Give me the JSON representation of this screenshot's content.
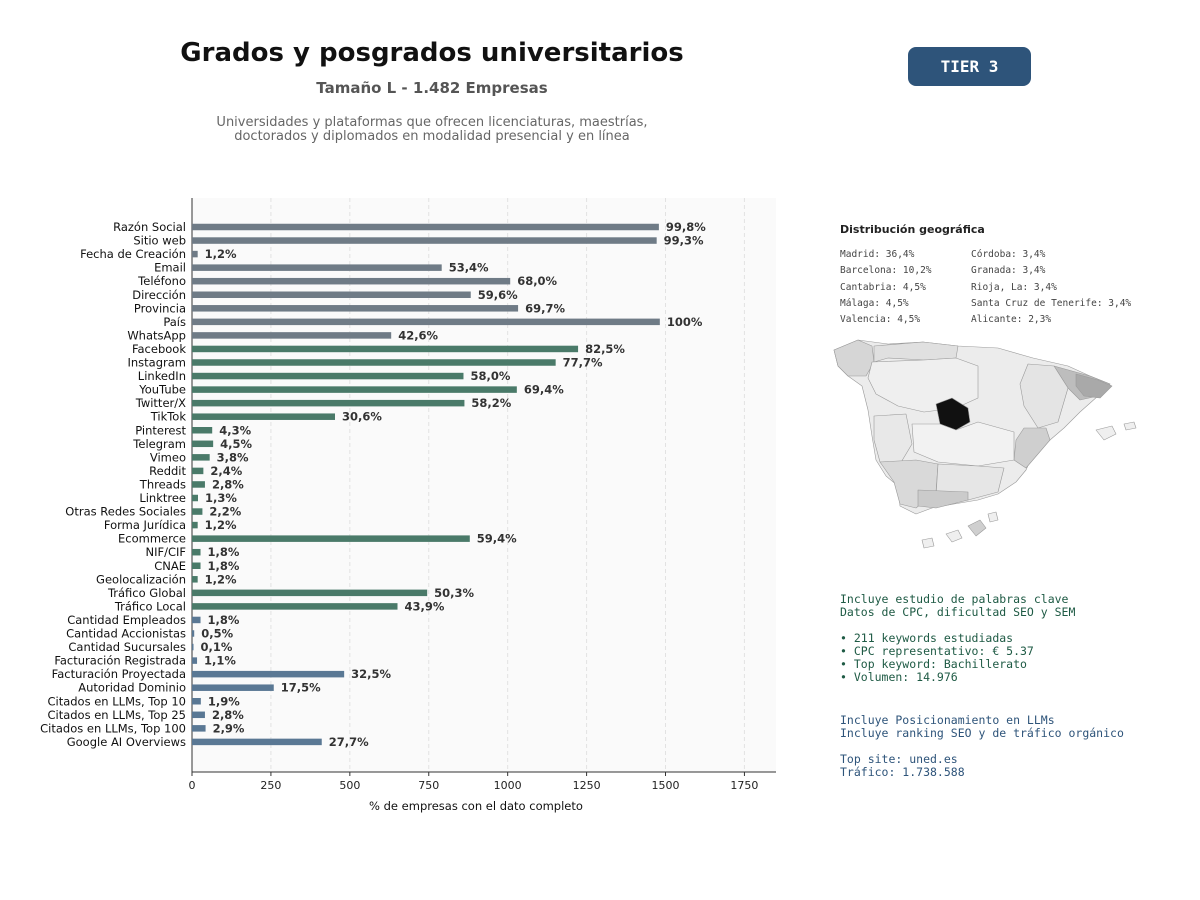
{
  "header": {
    "title": "Grados y posgrados universitarios",
    "subtitle": "Tamaño L - 1.482 Empresas",
    "description_line1": "Universidades y plataformas que ofrecen licenciaturas, maestrías,",
    "description_line2": "doctorados y diplomados en modalidad presencial y en línea",
    "tier": "TIER 3"
  },
  "colors": {
    "gray_bar": "#6f7b86",
    "green_bar": "#4a7a69",
    "blue_bar": "#5a7894",
    "tier_bg": "#2e547a"
  },
  "chart_data": {
    "type": "bar",
    "orientation": "horizontal",
    "xlabel": "% de empresas con el dato completo",
    "ylabel": "",
    "xlim": [
      0,
      1850
    ],
    "xticks": [
      0,
      250,
      500,
      750,
      1000,
      1250,
      1500,
      1750
    ],
    "grid": "vertical dashed",
    "categories": [
      "Razón Social",
      "Sitio web",
      "Fecha de Creación",
      "Email",
      "Teléfono",
      "Dirección",
      "Provincia",
      "País",
      "WhatsApp",
      "Facebook",
      "Instagram",
      "LinkedIn",
      "YouTube",
      "Twitter/X",
      "TikTok",
      "Pinterest",
      "Telegram",
      "Vimeo",
      "Reddit",
      "Threads",
      "Linktree",
      "Otras Redes Sociales",
      "Forma Jurídica",
      "Ecommerce",
      "NIF/CIF",
      "CNAE",
      "Geolocalización",
      "Tráfico Global",
      "Tráfico Local",
      "Cantidad Empleados",
      "Cantidad Accionistas",
      "Cantidad Sucursales",
      "Facturación Registrada",
      "Facturación Proyectada",
      "Autoridad Dominio",
      "Citados en LLMs, Top 10",
      "Citados en LLMs, Top 25",
      "Citados en LLMs, Top 100",
      "Google AI Overviews"
    ],
    "values": [
      1479,
      1472,
      18,
      791,
      1008,
      883,
      1033,
      1482,
      631,
      1223,
      1152,
      860,
      1029,
      863,
      453,
      64,
      67,
      56,
      36,
      41,
      19,
      33,
      18,
      880,
      27,
      27,
      18,
      745,
      651,
      27,
      7,
      1,
      16,
      482,
      259,
      28,
      41,
      43,
      411
    ],
    "labels": [
      "99,8%",
      "99,3%",
      "1,2%",
      "53,4%",
      "68,0%",
      "59,6%",
      "69,7%",
      "100%",
      "42,6%",
      "82,5%",
      "77,7%",
      "58,0%",
      "69,4%",
      "58,2%",
      "30,6%",
      "4,3%",
      "4,5%",
      "3,8%",
      "2,4%",
      "2,8%",
      "1,3%",
      "2,2%",
      "1,2%",
      "59,4%",
      "1,8%",
      "1,8%",
      "1,2%",
      "50,3%",
      "43,9%",
      "1,8%",
      "0,5%",
      "0,1%",
      "1,1%",
      "32,5%",
      "17,5%",
      "1,9%",
      "2,8%",
      "2,9%",
      "27,7%"
    ],
    "groups": [
      "gray",
      "gray",
      "gray",
      "gray",
      "gray",
      "gray",
      "gray",
      "gray",
      "gray",
      "green",
      "green",
      "green",
      "green",
      "green",
      "green",
      "green",
      "green",
      "green",
      "green",
      "green",
      "green",
      "green",
      "green",
      "green",
      "green",
      "green",
      "green",
      "green",
      "green",
      "blue",
      "blue",
      "blue",
      "blue",
      "blue",
      "blue",
      "blue",
      "blue",
      "blue",
      "blue"
    ]
  },
  "geo": {
    "title": "Distribución geográfica",
    "col1": [
      "Madrid: 36,4%",
      "Barcelona: 10,2%",
      "Cantabria: 4,5%",
      "Málaga: 4,5%",
      "Valencia: 4,5%"
    ],
    "col2": [
      "Córdoba: 3,4%",
      "Granada: 3,4%",
      "Rioja, La: 3,4%",
      "Santa Cruz de Tenerife: 3,4%",
      "Alicante: 2,3%"
    ]
  },
  "keywords": {
    "line1": "Incluye estudio de palabras clave",
    "line2": "Datos de CPC, dificultad SEO y SEM",
    "bullet1": "• 211 keywords estudiadas",
    "bullet2": "• CPC representativo: € 5.37",
    "bullet3": "• Top keyword: Bachillerato",
    "bullet4": "• Volumen: 14.976"
  },
  "llm": {
    "line1": "Incluye Posicionamiento en LLMs",
    "line2": "Incluye ranking SEO y de tráfico orgánico",
    "top_site": "Top site: uned.es",
    "traffic": "Tráfico: 1.738.588"
  }
}
